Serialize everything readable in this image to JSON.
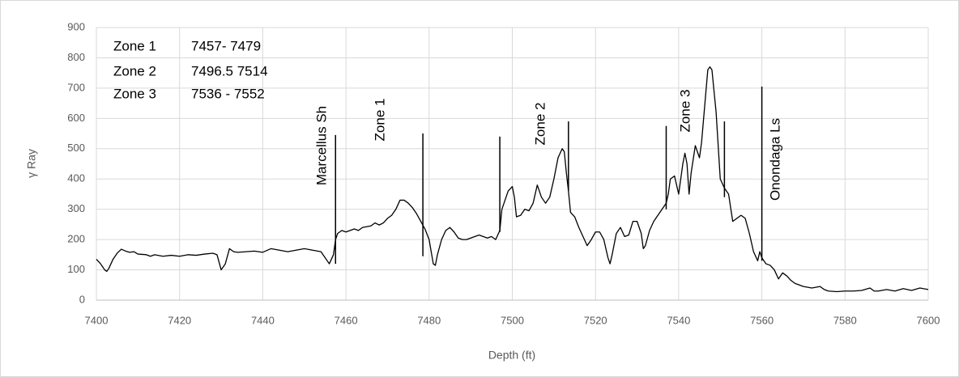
{
  "chart_data": {
    "type": "line",
    "y_label": "γ Ray",
    "x_label": "Depth (ft)",
    "color": "#000000",
    "grid": true,
    "xlim": [
      7400,
      7600
    ],
    "xticks": [
      7400,
      7420,
      7440,
      7460,
      7480,
      7500,
      7520,
      7540,
      7560,
      7580,
      7600
    ],
    "ylim": [
      0,
      900
    ],
    "yticks": [
      0,
      100,
      200,
      300,
      400,
      500,
      600,
      700,
      800,
      900
    ],
    "text_box": [
      [
        "Zone 1",
        "7457- 7479"
      ],
      [
        "Zone 2",
        "7496.5 7514"
      ],
      [
        "Zone 3",
        "7536 - 7552"
      ]
    ],
    "annotations": [
      "Marcellus Sh",
      "Zone 1",
      "Zone 2",
      "Zone 3",
      "Onondaga Ls"
    ],
    "markers": [
      {
        "x": 7457.5,
        "y_low": 120,
        "y_high": 545
      },
      {
        "x": 7478.5,
        "y_low": 145,
        "y_high": 550
      },
      {
        "x": 7497,
        "y_low": 225,
        "y_high": 540
      },
      {
        "x": 7513.5,
        "y_low": 360,
        "y_high": 590
      },
      {
        "x": 7537,
        "y_low": 300,
        "y_high": 575
      },
      {
        "x": 7551,
        "y_low": 340,
        "y_high": 590
      },
      {
        "x": 7560,
        "y_low": 130,
        "y_high": 705
      }
    ],
    "x": [
      7400,
      7401,
      7402,
      7402.5,
      7403,
      7404,
      7405,
      7406,
      7407,
      7408,
      7409,
      7410,
      7412,
      7413,
      7414,
      7416,
      7418,
      7420,
      7422,
      7424,
      7426,
      7428,
      7429,
      7430,
      7431,
      7432,
      7433,
      7434,
      7436,
      7438,
      7440,
      7442,
      7444,
      7446,
      7448,
      7450,
      7452,
      7454,
      7455,
      7456,
      7457,
      7457.5,
      7458,
      7459,
      7460,
      7462,
      7463,
      7464,
      7466,
      7467,
      7468,
      7469,
      7470,
      7471,
      7472,
      7473,
      7474,
      7475,
      7476,
      7477,
      7478,
      7479,
      7480,
      7481,
      7481.5,
      7482,
      7483,
      7484,
      7485,
      7486,
      7487,
      7488,
      7489,
      7490,
      7491,
      7492,
      7493,
      7494,
      7495,
      7496,
      7497,
      7497.5,
      7498,
      7499,
      7500,
      7500.5,
      7501,
      7502,
      7503,
      7504,
      7505,
      7506,
      7507,
      7508,
      7509,
      7510,
      7511,
      7512,
      7512.5,
      7513,
      7513.5,
      7514,
      7515,
      7516,
      7517,
      7518,
      7519,
      7520,
      7521,
      7522,
      7523,
      7523.5,
      7524,
      7525,
      7526,
      7527,
      7528,
      7529,
      7530,
      7531,
      7531.5,
      7532,
      7533,
      7534,
      7535,
      7536,
      7537,
      7537.5,
      7538,
      7539,
      7540,
      7541,
      7541.5,
      7542,
      7542.5,
      7543,
      7544,
      7545,
      7545.5,
      7546,
      7547,
      7547.5,
      7548,
      7549,
      7550,
      7551,
      7552,
      7553,
      7554,
      7555,
      7556,
      7557,
      7558,
      7559,
      7559.5,
      7560,
      7561,
      7562,
      7563,
      7564,
      7565,
      7566,
      7567,
      7568,
      7570,
      7572,
      7574,
      7575,
      7576,
      7578,
      7580,
      7582,
      7584,
      7586,
      7587,
      7588,
      7590,
      7592,
      7594,
      7596,
      7598,
      7600
    ],
    "values": [
      135,
      120,
      100,
      95,
      105,
      135,
      155,
      168,
      162,
      158,
      160,
      152,
      150,
      145,
      150,
      145,
      148,
      145,
      150,
      148,
      152,
      155,
      150,
      100,
      120,
      170,
      160,
      158,
      160,
      162,
      158,
      170,
      165,
      160,
      165,
      170,
      165,
      160,
      140,
      120,
      150,
      200,
      220,
      230,
      225,
      235,
      230,
      240,
      245,
      255,
      248,
      255,
      270,
      280,
      300,
      330,
      330,
      320,
      305,
      285,
      260,
      235,
      200,
      120,
      115,
      150,
      200,
      230,
      240,
      225,
      205,
      200,
      200,
      205,
      210,
      215,
      210,
      205,
      210,
      200,
      230,
      300,
      320,
      360,
      375,
      340,
      275,
      280,
      300,
      295,
      320,
      380,
      340,
      320,
      340,
      400,
      470,
      500,
      490,
      420,
      360,
      290,
      275,
      240,
      210,
      180,
      200,
      225,
      225,
      200,
      140,
      120,
      150,
      220,
      240,
      210,
      215,
      260,
      260,
      220,
      170,
      180,
      230,
      260,
      280,
      300,
      320,
      350,
      400,
      410,
      350,
      450,
      485,
      450,
      350,
      420,
      510,
      470,
      520,
      600,
      760,
      770,
      760,
      620,
      400,
      370,
      350,
      260,
      270,
      280,
      270,
      220,
      160,
      130,
      160,
      140,
      120,
      115,
      100,
      70,
      90,
      80,
      65,
      55,
      45,
      40,
      45,
      35,
      30,
      28,
      30,
      30,
      32,
      40,
      30,
      30,
      35,
      30,
      38,
      32,
      40,
      35
    ]
  }
}
